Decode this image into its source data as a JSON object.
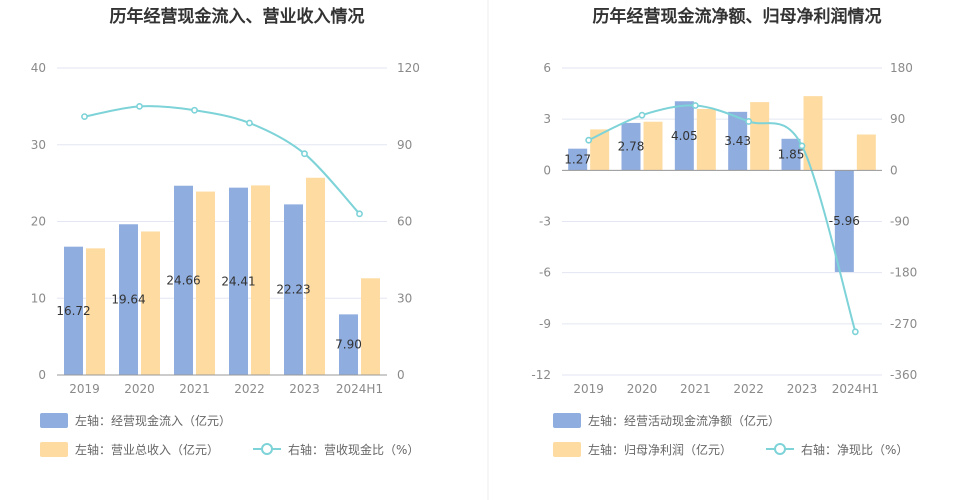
{
  "colors": {
    "bar_left": "#8fadde",
    "bar_right": "#fedba1",
    "line": "#7dd3d8",
    "grid": "#e3e6f3",
    "axis": "#999999",
    "divider": "#eeeeee"
  },
  "chart_data": [
    {
      "type": "bar+line",
      "title": "历年经营现金流入、营业收入情况",
      "categories": [
        "2019",
        "2020",
        "2021",
        "2022",
        "2023",
        "2024H1"
      ],
      "left_axis": {
        "ticks": [
          "0",
          "10",
          "20",
          "30",
          "40"
        ],
        "min": 0,
        "max": 40
      },
      "right_axis": {
        "ticks": [
          "0",
          "30",
          "60",
          "90",
          "120"
        ],
        "min": 0,
        "max": 120
      },
      "series": [
        {
          "name": "左轴：经营现金流入（亿元）",
          "type": "bar",
          "axis": "left",
          "values": [
            16.72,
            19.64,
            24.66,
            24.41,
            22.23,
            7.9
          ],
          "labels": [
            "16.72",
            "19.64",
            "24.66",
            "24.41",
            "22.23",
            "7.90"
          ]
        },
        {
          "name": "左轴：营业总收入（亿元）",
          "type": "bar",
          "axis": "left",
          "values": [
            16.5,
            18.7,
            23.9,
            24.7,
            25.7,
            12.6
          ]
        },
        {
          "name": "右轴：营收现金比（%）",
          "type": "line",
          "axis": "right",
          "values": [
            101,
            105,
            103.5,
            98.5,
            86.5,
            63
          ]
        }
      ]
    },
    {
      "type": "bar+line",
      "title": "历年经营现金流净额、归母净利润情况",
      "categories": [
        "2019",
        "2020",
        "2021",
        "2022",
        "2023",
        "2024H1"
      ],
      "left_axis": {
        "ticks": [
          "-12",
          "-9",
          "-6",
          "-3",
          "0",
          "3",
          "6"
        ],
        "min": -12,
        "max": 6
      },
      "right_axis": {
        "ticks": [
          "-360",
          "-270",
          "-180",
          "-90",
          "0",
          "90",
          "180"
        ],
        "min": -360,
        "max": 180
      },
      "series": [
        {
          "name": "左轴：经营活动现金流净额（亿元）",
          "type": "bar",
          "axis": "left",
          "values": [
            1.27,
            2.78,
            4.05,
            3.43,
            1.85,
            -5.96
          ],
          "labels": [
            "1.27",
            "2.78",
            "4.05",
            "3.43",
            "1.85",
            "-5.96"
          ]
        },
        {
          "name": "左轴：归母净利润（亿元）",
          "type": "bar",
          "axis": "left",
          "values": [
            2.4,
            2.85,
            3.6,
            4.0,
            4.35,
            2.1
          ]
        },
        {
          "name": "右轴：净现比（%）",
          "type": "line",
          "axis": "right",
          "values": [
            53,
            97,
            114,
            86,
            43,
            -284
          ]
        }
      ]
    }
  ]
}
